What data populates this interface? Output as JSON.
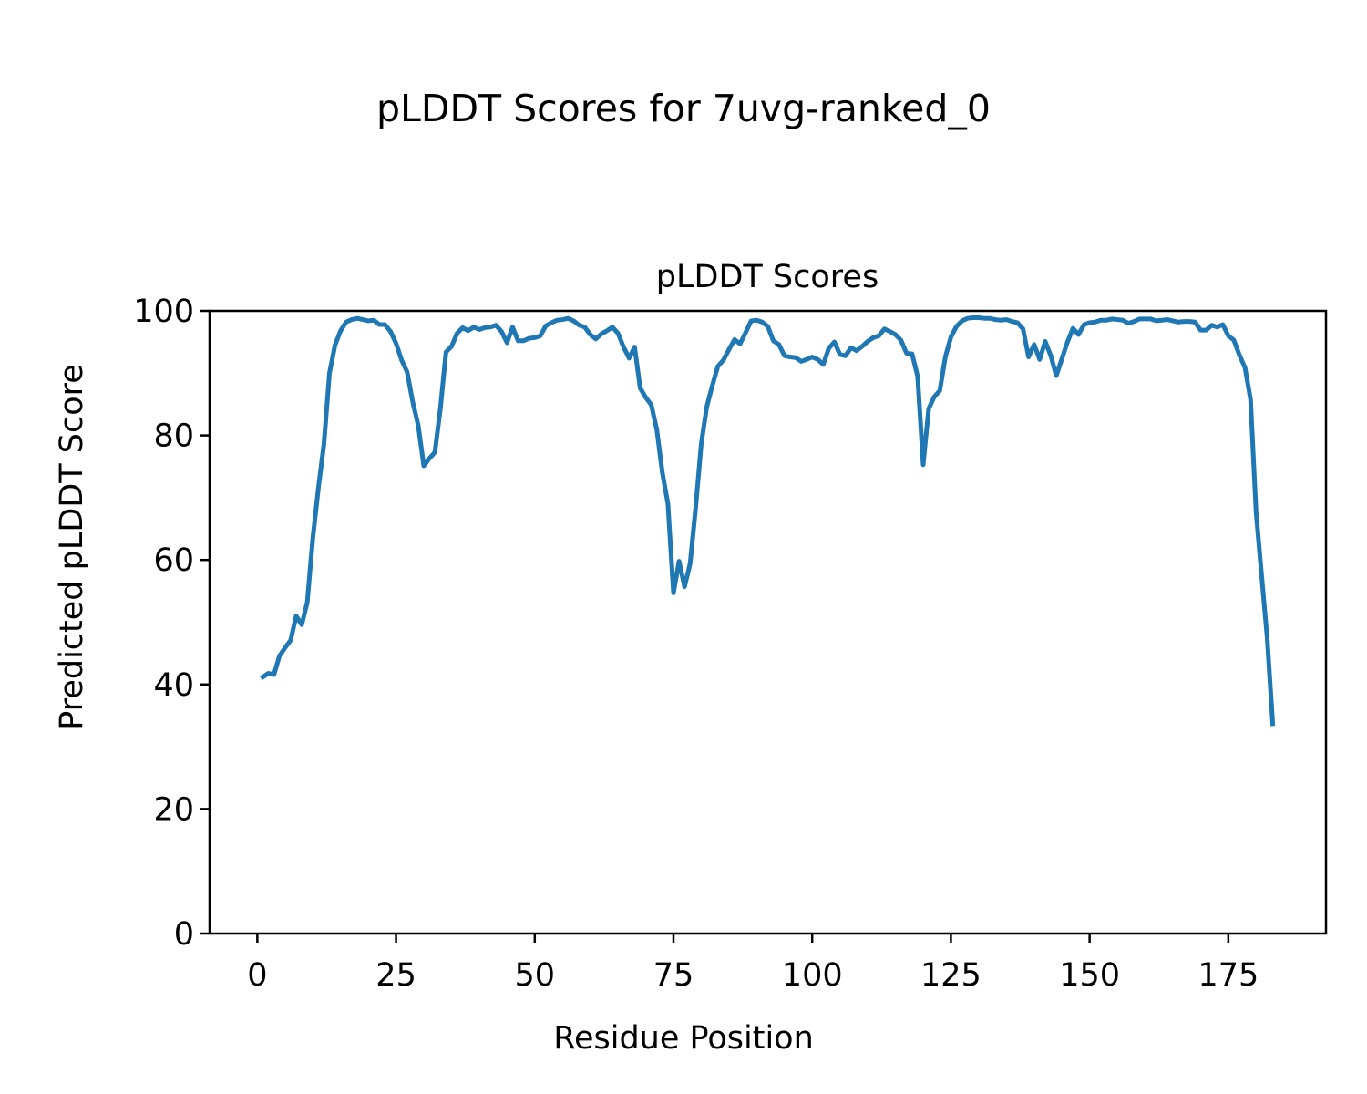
{
  "figure": {
    "suptitle": "pLDDT Scores for 7uvg-ranked_0"
  },
  "chart_data": {
    "type": "line",
    "title": "pLDDT Scores",
    "xlabel": "Residue Position",
    "ylabel": "Predicted pLDDT Score",
    "xlim": [
      -8.6,
      192.6
    ],
    "ylim": [
      0,
      100
    ],
    "xticks": [
      0,
      25,
      50,
      75,
      100,
      125,
      150,
      175
    ],
    "yticks": [
      0,
      20,
      40,
      60,
      80,
      100
    ],
    "grid": false,
    "legend": "none",
    "series": [
      {
        "color": "#1f77b4",
        "x_start": 1,
        "x_step": 1,
        "values": [
          41.2,
          41.8,
          41.6,
          44.6,
          45.9,
          47.1,
          51,
          49.6,
          53.2,
          63.5,
          71.5,
          78.6,
          90,
          94.5,
          96.8,
          98.2,
          98.6,
          98.8,
          98.6,
          98.4,
          98.5,
          97.8,
          97.8,
          96.7,
          94.8,
          92.1,
          90.2,
          85.4,
          81.6,
          75.1,
          76.3,
          77.3,
          84.4,
          93.4,
          94.3,
          96.4,
          97.3,
          96.8,
          97.4,
          97,
          97.3,
          97.4,
          97.7,
          96.7,
          94.9,
          97.4,
          95.2,
          95.2,
          95.6,
          95.7,
          96,
          97.6,
          98.1,
          98.5,
          98.6,
          98.8,
          98.4,
          97.7,
          97.4,
          96.2,
          95.5,
          96.3,
          96.8,
          97.4,
          96.4,
          94.2,
          92.4,
          94.2,
          87.6,
          86.1,
          84.9,
          80.9,
          74,
          69,
          54.7,
          59.8,
          55.7,
          59.4,
          68.4,
          78.6,
          84.6,
          88,
          91.1,
          92.1,
          93.8,
          95.4,
          94.7,
          96.5,
          98.4,
          98.5,
          98.2,
          97.5,
          95.2,
          94.6,
          92.8,
          92.6,
          92.5,
          91.9,
          92.2,
          92.6,
          92.2,
          91.4,
          94,
          95,
          93,
          92.8,
          94.1,
          93.6,
          94.3,
          95.1,
          95.7,
          96,
          97.1,
          96.7,
          96.2,
          95.3,
          93.2,
          93.1,
          89.5,
          75.3,
          84.3,
          86.2,
          87.2,
          92.6,
          95.8,
          97.5,
          98.4,
          98.8,
          98.9,
          98.9,
          98.8,
          98.8,
          98.6,
          98.5,
          98.6,
          98.3,
          98.1,
          97.1,
          92.6,
          94.6,
          92.2,
          95.1,
          92.8,
          89.6,
          92.3,
          95,
          97.2,
          96.2,
          97.8,
          98.1,
          98.2,
          98.5,
          98.5,
          98.7,
          98.6,
          98.5,
          98,
          98.3,
          98.7,
          98.7,
          98.7,
          98.4,
          98.5,
          98.6,
          98.4,
          98.2,
          98.3,
          98.3,
          98.2,
          96.9,
          96.9,
          97.7,
          97.4,
          97.8,
          96,
          95.3,
          92.9,
          90.9,
          85.8,
          67.7,
          57.5,
          47.5,
          33.7
        ]
      }
    ]
  }
}
